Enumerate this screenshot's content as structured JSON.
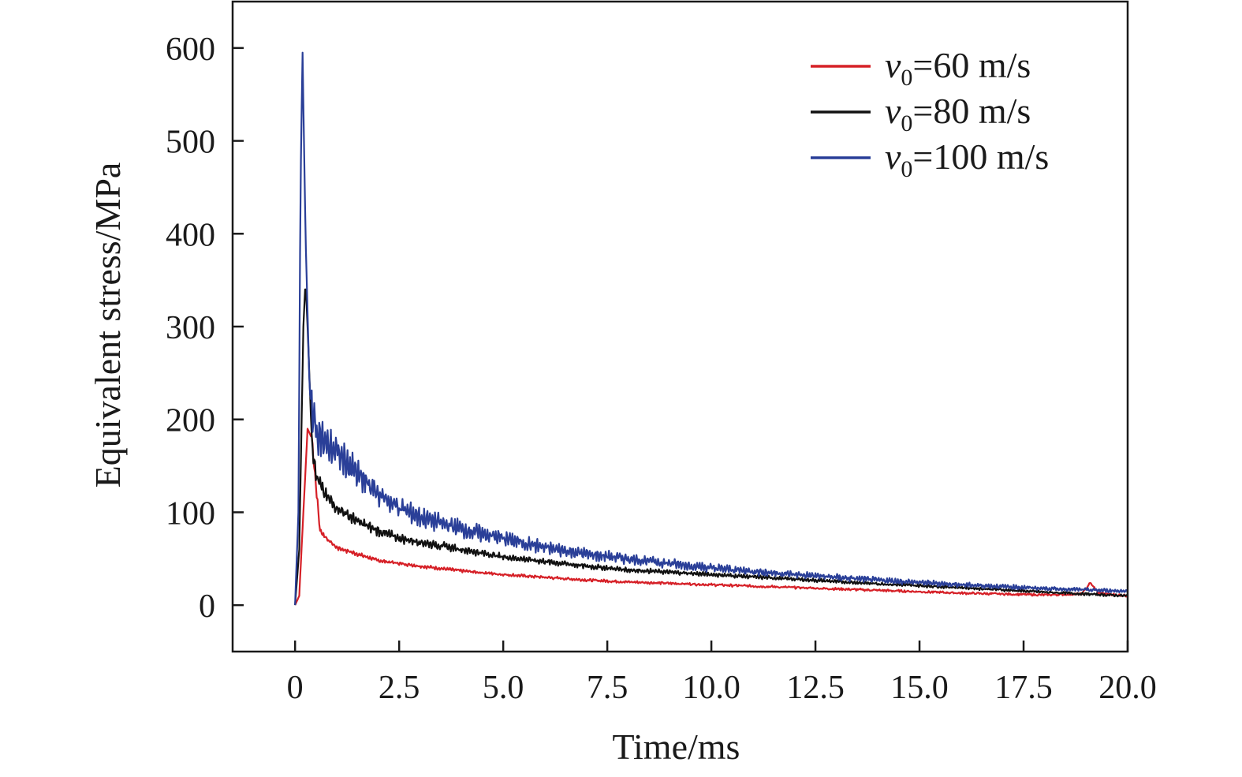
{
  "chart_data": {
    "type": "line",
    "title": "",
    "xlabel": "Time/ms",
    "ylabel": "Equivalent stress/MPa",
    "xlim": [
      -1.5,
      20
    ],
    "ylim": [
      -50,
      650
    ],
    "xticks": [
      0,
      2.5,
      5,
      7.5,
      10,
      12.5,
      15,
      17.5,
      20
    ],
    "xtick_labels": [
      "0",
      "2.5",
      "5.0",
      "7.5",
      "10.0",
      "12.5",
      "15.0",
      "17.5",
      "20.0"
    ],
    "yticks": [
      0,
      100,
      200,
      300,
      400,
      500,
      600
    ],
    "ytick_labels": [
      "0",
      "100",
      "200",
      "300",
      "400",
      "500",
      "600"
    ],
    "grid": false,
    "legend_position": "top-right",
    "series": [
      {
        "legend_prefix": "v",
        "legend_sub": "0",
        "legend_suffix": "=60 m/s",
        "color": "#d62027",
        "x": [
          0,
          0.1,
          0.2,
          0.3,
          0.4,
          0.5,
          0.6,
          0.8,
          1.0,
          1.5,
          2.0,
          3.0,
          4.0,
          5.0,
          6.0,
          7.0,
          8.0,
          10.0,
          12.0,
          14.0,
          16.0,
          18.0,
          18.9,
          19.1,
          19.3,
          20.0
        ],
        "y": [
          0,
          10,
          100,
          190,
          180,
          130,
          80,
          70,
          62,
          55,
          48,
          42,
          37,
          33,
          30,
          27,
          25,
          22,
          19,
          16,
          13,
          11,
          12,
          24,
          13,
          10
        ]
      },
      {
        "legend_prefix": "v",
        "legend_sub": "0",
        "legend_suffix": "=80 m/s",
        "color": "#111111",
        "x": [
          0,
          0.1,
          0.2,
          0.25,
          0.3,
          0.4,
          0.5,
          0.7,
          1.0,
          1.5,
          2.0,
          2.5,
          3.0,
          4.0,
          5.0,
          6.0,
          7.0,
          8.0,
          10.0,
          12.0,
          14.0,
          16.0,
          18.0,
          20.0
        ],
        "y": [
          0,
          60,
          300,
          350,
          300,
          180,
          140,
          120,
          105,
          90,
          80,
          72,
          68,
          60,
          52,
          47,
          42,
          38,
          33,
          28,
          23,
          19,
          14,
          10
        ]
      },
      {
        "legend_prefix": "v",
        "legend_sub": "0",
        "legend_suffix": "=100 m/s",
        "color": "#2a3f98",
        "x": [
          0,
          0.08,
          0.13,
          0.18,
          0.25,
          0.35,
          0.5,
          0.7,
          1.0,
          1.5,
          2.0,
          2.5,
          3.0,
          4.0,
          5.0,
          6.0,
          7.0,
          8.0,
          9.0,
          10.0,
          12.0,
          14.0,
          16.0,
          18.0,
          20.0
        ],
        "y": [
          0,
          100,
          450,
          595,
          400,
          230,
          190,
          175,
          165,
          140,
          120,
          105,
          95,
          82,
          72,
          62,
          55,
          50,
          45,
          40,
          33,
          27,
          22,
          18,
          15
        ]
      }
    ]
  }
}
